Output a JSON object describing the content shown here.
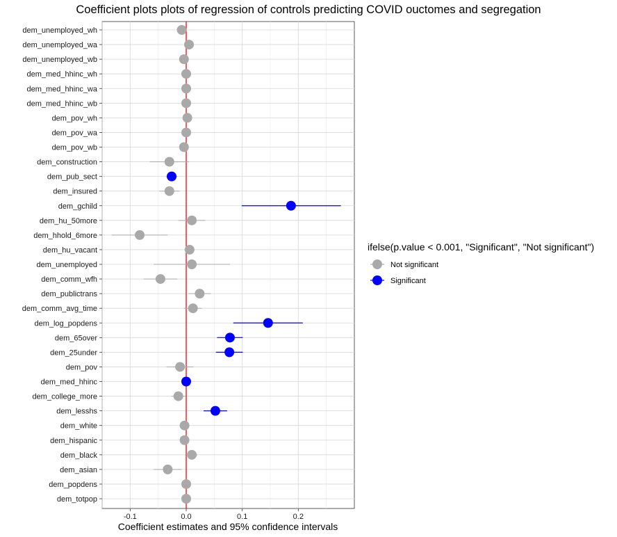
{
  "title": "Coefficient plots plots of regression of controls predicting COVID ouctomes and segregation",
  "chart_data": {
    "type": "scatter",
    "title": "Coefficient plots plots of regression of controls predicting COVID ouctomes and segregation",
    "xlabel": "Coefficient estimates and 95% confidence intervals",
    "ylabel": "",
    "xlim": [
      -0.15,
      0.3
    ],
    "xticks": [
      -0.1,
      0.0,
      0.1,
      0.2
    ],
    "xtick_labels": [
      "-0.1",
      "0.0",
      "0.1",
      "0.2"
    ],
    "reference_line": {
      "x": 0,
      "color": "#ff0000"
    },
    "grid": true,
    "legend": {
      "title": "ifelse(p.value < 0.001, \"Significant\", \"Not significant\")",
      "position": "right",
      "entries": [
        {
          "label": "Not significant",
          "color": "#a9a9a9"
        },
        {
          "label": "Significant",
          "color": "#0000ff"
        }
      ]
    },
    "terms": [
      {
        "term": "dem_unemployed_wh",
        "estimate": -0.008,
        "low": -0.014,
        "high": -0.002,
        "significant": false
      },
      {
        "term": "dem_unemployed_wa",
        "estimate": 0.005,
        "low": -0.001,
        "high": 0.011,
        "significant": false
      },
      {
        "term": "dem_unemployed_wb",
        "estimate": -0.004,
        "low": -0.008,
        "high": 0.0,
        "significant": false
      },
      {
        "term": "dem_med_hhinc_wh",
        "estimate": 0.0,
        "low": -0.002,
        "high": 0.002,
        "significant": false
      },
      {
        "term": "dem_med_hhinc_wa",
        "estimate": 0.0,
        "low": -0.002,
        "high": 0.002,
        "significant": false
      },
      {
        "term": "dem_med_hhinc_wb",
        "estimate": 0.0,
        "low": -0.002,
        "high": 0.002,
        "significant": false
      },
      {
        "term": "dem_pov_wh",
        "estimate": 0.002,
        "low": -0.002,
        "high": 0.006,
        "significant": false
      },
      {
        "term": "dem_pov_wa",
        "estimate": 0.0,
        "low": -0.004,
        "high": 0.004,
        "significant": false
      },
      {
        "term": "dem_pov_wb",
        "estimate": -0.004,
        "low": -0.008,
        "high": 0.0,
        "significant": false
      },
      {
        "term": "dem_construction",
        "estimate": -0.03,
        "low": -0.065,
        "high": 0.005,
        "significant": false
      },
      {
        "term": "dem_pub_sect",
        "estimate": -0.026,
        "low": -0.035,
        "high": -0.017,
        "significant": true
      },
      {
        "term": "dem_insured",
        "estimate": -0.03,
        "low": -0.048,
        "high": -0.012,
        "significant": false
      },
      {
        "term": "dem_gchild",
        "estimate": 0.187,
        "low": 0.099,
        "high": 0.276,
        "significant": true
      },
      {
        "term": "dem_hu_50more",
        "estimate": 0.01,
        "low": -0.014,
        "high": 0.034,
        "significant": false
      },
      {
        "term": "dem_hhold_6more",
        "estimate": -0.083,
        "low": -0.133,
        "high": -0.033,
        "significant": false
      },
      {
        "term": "dem_hu_vacant",
        "estimate": 0.006,
        "low": -0.003,
        "high": 0.015,
        "significant": false
      },
      {
        "term": "dem_unemployed",
        "estimate": 0.01,
        "low": -0.058,
        "high": 0.078,
        "significant": false
      },
      {
        "term": "dem_comm_wfh",
        "estimate": -0.046,
        "low": -0.076,
        "high": -0.016,
        "significant": false
      },
      {
        "term": "dem_publictrans",
        "estimate": 0.024,
        "low": 0.004,
        "high": 0.044,
        "significant": false
      },
      {
        "term": "dem_comm_avg_time",
        "estimate": 0.012,
        "low": -0.004,
        "high": 0.028,
        "significant": false
      },
      {
        "term": "dem_log_popdens",
        "estimate": 0.146,
        "low": 0.084,
        "high": 0.208,
        "significant": true
      },
      {
        "term": "dem_65over",
        "estimate": 0.078,
        "low": 0.055,
        "high": 0.101,
        "significant": true
      },
      {
        "term": "dem_25under",
        "estimate": 0.077,
        "low": 0.053,
        "high": 0.101,
        "significant": true
      },
      {
        "term": "dem_pov",
        "estimate": -0.011,
        "low": -0.035,
        "high": 0.013,
        "significant": false
      },
      {
        "term": "dem_med_hhinc",
        "estimate": 0.0,
        "low": -0.002,
        "high": 0.002,
        "significant": true
      },
      {
        "term": "dem_college_more",
        "estimate": -0.014,
        "low": -0.026,
        "high": -0.002,
        "significant": false
      },
      {
        "term": "dem_lesshs",
        "estimate": 0.052,
        "low": 0.031,
        "high": 0.073,
        "significant": true
      },
      {
        "term": "dem_white",
        "estimate": -0.003,
        "low": -0.011,
        "high": 0.005,
        "significant": false
      },
      {
        "term": "dem_hispanic",
        "estimate": -0.003,
        "low": -0.011,
        "high": 0.005,
        "significant": false
      },
      {
        "term": "dem_black",
        "estimate": 0.01,
        "low": 0.0,
        "high": 0.02,
        "significant": false
      },
      {
        "term": "dem_asian",
        "estimate": -0.033,
        "low": -0.058,
        "high": -0.008,
        "significant": false
      },
      {
        "term": "dem_popdens",
        "estimate": 0.0,
        "low": -0.002,
        "high": 0.002,
        "significant": false
      },
      {
        "term": "dem_totpop",
        "estimate": 0.0,
        "low": -0.002,
        "high": 0.002,
        "significant": false
      }
    ]
  }
}
